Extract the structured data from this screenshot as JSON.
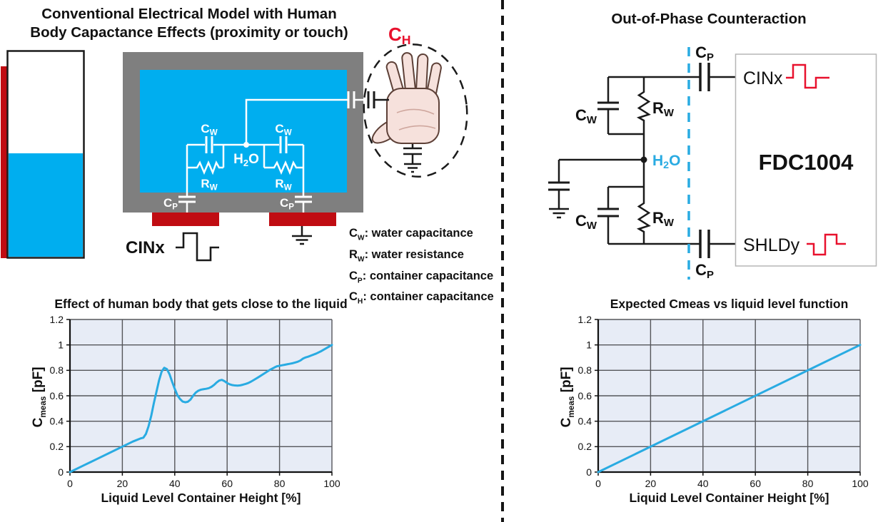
{
  "left_panel": {
    "title_line1": "Conventional Electrical Model with Human",
    "title_line2": "Body Capactance Effects (proximity or touch)",
    "ch_sym": "C",
    "ch_sub": "H",
    "cw_sym": "C",
    "cw_sub": "W",
    "rw_sym": "R",
    "rw_sub": "W",
    "cp_sym": "C",
    "cp_sub": "P",
    "h2o_h": "H",
    "h2o_2": "2",
    "h2o_o": "O",
    "cinx_label": "CINx",
    "legend": [
      {
        "sym": "C",
        "sub": "W",
        "desc": ": water capacitance"
      },
      {
        "sym": "R",
        "sub": "W",
        "desc": ": water resistance"
      },
      {
        "sym": "C",
        "sub": "P",
        "desc": ": container capacitance"
      },
      {
        "sym": "C",
        "sub": "H",
        "desc": ": container capacitance"
      }
    ]
  },
  "right_panel": {
    "title": "Out-of-Phase Counteraction",
    "chip_label": "FDC1004",
    "cinx_label": "CINx",
    "shldy_label": "SHLDy",
    "cp_sym": "C",
    "cp_sub": "P",
    "cw_sym": "C",
    "cw_sub": "W",
    "rw_sym": "R",
    "rw_sub": "W",
    "h2o_h": "H",
    "h2o_2": "2",
    "h2o_o": "O"
  },
  "colors": {
    "water_blue": "#00AEEF",
    "container_gray": "#7F7F7F",
    "electrode_red": "#C00C12",
    "signal_red": "#E8112D",
    "accent_cyan": "#29ABE2",
    "chart_bg": "#E7ECF6",
    "grid_gray": "#55565A"
  },
  "chart_data": [
    {
      "type": "line",
      "title": "Effect of human body that gets close to the liquid",
      "xlabel": "Liquid Level Container Height [%]",
      "ylabel": "Cmeas [pF]",
      "ylabel_sym": "C",
      "ylabel_sub": "meas",
      "ylabel_unit": " [pF]",
      "xlim": [
        0,
        100
      ],
      "ylim": [
        0,
        1.2
      ],
      "xticks": [
        0,
        20,
        40,
        60,
        80,
        100
      ],
      "yticks": [
        0,
        0.2,
        0.4,
        0.6,
        0.8,
        1,
        1.2
      ],
      "grid": true,
      "legend_position": "none",
      "line_color": "#29ABE2",
      "plot_bg": "#E7ECF6",
      "points": [
        [
          0,
          0
        ],
        [
          5,
          0.05
        ],
        [
          10,
          0.1
        ],
        [
          15,
          0.15
        ],
        [
          20,
          0.2
        ],
        [
          24,
          0.24
        ],
        [
          27,
          0.265
        ],
        [
          28,
          0.27
        ],
        [
          29,
          0.3
        ],
        [
          30,
          0.36
        ],
        [
          31,
          0.44
        ],
        [
          32,
          0.54
        ],
        [
          33,
          0.63
        ],
        [
          34,
          0.72
        ],
        [
          35,
          0.79
        ],
        [
          36,
          0.82
        ],
        [
          37,
          0.81
        ],
        [
          38,
          0.77
        ],
        [
          39,
          0.71
        ],
        [
          40,
          0.655
        ],
        [
          41,
          0.605
        ],
        [
          42,
          0.575
        ],
        [
          43,
          0.555
        ],
        [
          44,
          0.549
        ],
        [
          45,
          0.553
        ],
        [
          46,
          0.57
        ],
        [
          47,
          0.6
        ],
        [
          48,
          0.625
        ],
        [
          49,
          0.64
        ],
        [
          50,
          0.648
        ],
        [
          51,
          0.652
        ],
        [
          52,
          0.655
        ],
        [
          53,
          0.66
        ],
        [
          54,
          0.67
        ],
        [
          55,
          0.685
        ],
        [
          56,
          0.705
        ],
        [
          57,
          0.72
        ],
        [
          58,
          0.725
        ],
        [
          59,
          0.715
        ],
        [
          60,
          0.7
        ],
        [
          61,
          0.69
        ],
        [
          62,
          0.684
        ],
        [
          63,
          0.681
        ],
        [
          64,
          0.68
        ],
        [
          65,
          0.682
        ],
        [
          66,
          0.687
        ],
        [
          67,
          0.693
        ],
        [
          68,
          0.7
        ],
        [
          69,
          0.71
        ],
        [
          70,
          0.722
        ],
        [
          72,
          0.747
        ],
        [
          74,
          0.773
        ],
        [
          76,
          0.8
        ],
        [
          78,
          0.822
        ],
        [
          79,
          0.832
        ],
        [
          80,
          0.836
        ],
        [
          81,
          0.84
        ],
        [
          82,
          0.844
        ],
        [
          83,
          0.848
        ],
        [
          84,
          0.852
        ],
        [
          85,
          0.856
        ],
        [
          86,
          0.862
        ],
        [
          87,
          0.868
        ],
        [
          88,
          0.878
        ],
        [
          89,
          0.893
        ],
        [
          90,
          0.902
        ],
        [
          91,
          0.908
        ],
        [
          92,
          0.916
        ],
        [
          94,
          0.932
        ],
        [
          96,
          0.952
        ],
        [
          98,
          0.976
        ],
        [
          100,
          1.0
        ]
      ]
    },
    {
      "type": "line",
      "title": "Expected Cmeas vs liquid level function",
      "xlabel": "Liquid Level Container Height [%]",
      "ylabel": "Cmeas [pF]",
      "ylabel_sym": "C",
      "ylabel_sub": "meas",
      "ylabel_unit": " [pF]",
      "xlim": [
        0,
        100
      ],
      "ylim": [
        0,
        1.2
      ],
      "xticks": [
        0,
        20,
        40,
        60,
        80,
        100
      ],
      "yticks": [
        0,
        0.2,
        0.4,
        0.6,
        0.8,
        1,
        1.2
      ],
      "grid": true,
      "legend_position": "none",
      "line_color": "#29ABE2",
      "plot_bg": "#E7ECF6",
      "points": [
        [
          0,
          0
        ],
        [
          100,
          1.0
        ]
      ]
    }
  ]
}
